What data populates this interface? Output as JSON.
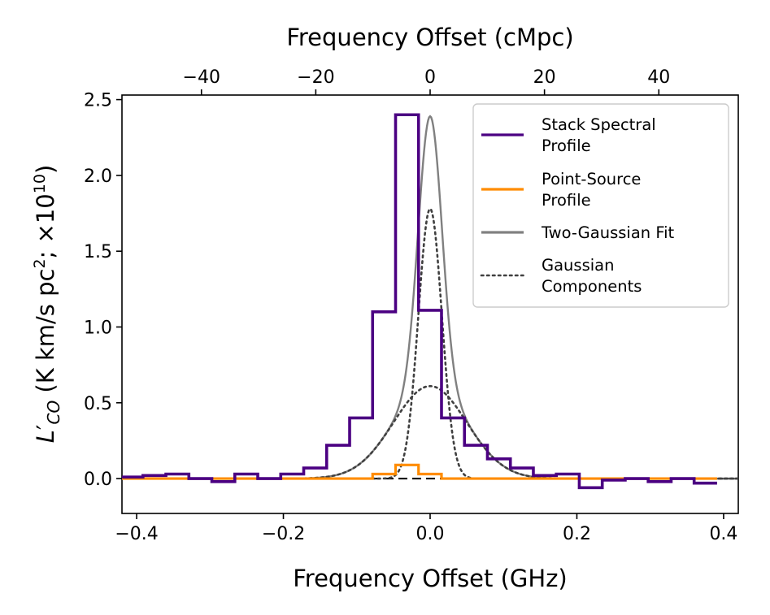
{
  "chart_data": {
    "type": "line",
    "bottom_axis": {
      "label": "Frequency Offset (GHz)",
      "range": [
        -0.42,
        0.42
      ],
      "ticks": [
        -0.4,
        -0.2,
        0.0,
        0.2,
        0.4
      ],
      "tick_labels": [
        "−0.4",
        "−0.2",
        "0.0",
        "0.2",
        "0.4"
      ]
    },
    "top_axis": {
      "label": "Frequency Offset (cMpc)",
      "range": [
        -53.9,
        53.9
      ],
      "ticks": [
        -40,
        -20,
        0,
        20,
        40
      ],
      "tick_labels": [
        "−40",
        "−20",
        "0",
        "20",
        "40"
      ]
    },
    "y_axis": {
      "label": "L′CO (K km/s pc2; ×1010)",
      "label_parts": {
        "symbol": "L",
        "prime": "′",
        "subscript": "CO",
        "open": " (K km/s pc",
        "sq": "2",
        "mid": "; ×10",
        "exp": "10",
        "close": ")"
      },
      "range": [
        -0.23,
        2.53
      ],
      "ticks": [
        0.0,
        0.5,
        1.0,
        1.5,
        2.0,
        2.5
      ],
      "tick_labels": [
        "0.0",
        "0.5",
        "1.0",
        "1.5",
        "2.0",
        "2.5"
      ]
    },
    "legend": {
      "position": "top-right",
      "entries": [
        {
          "lines": [
            "Stack Spectral",
            "Profile"
          ],
          "color": "#4b0082",
          "style": "solid"
        },
        {
          "lines": [
            "Point-Source",
            "Profile"
          ],
          "color": "#ff8c00",
          "style": "solid"
        },
        {
          "lines": [
            "Two-Gaussian Fit"
          ],
          "color": "#808080",
          "style": "solid"
        },
        {
          "lines": [
            "Gaussian",
            "Components"
          ],
          "color": "#404040",
          "style": "dotted"
        }
      ]
    },
    "bin_width": 0.0313,
    "series": [
      {
        "name": "Stack Spectral Profile",
        "kind": "step",
        "color": "#4b0082",
        "x_start": -0.4227,
        "values": [
          0.01,
          0.02,
          0.03,
          0.0,
          -0.02,
          0.03,
          0.0,
          0.03,
          0.07,
          0.22,
          0.4,
          1.1,
          2.4,
          1.11,
          0.4,
          0.22,
          0.13,
          0.07,
          0.02,
          0.03,
          -0.06,
          -0.01,
          0.0,
          -0.02,
          0.0,
          -0.03
        ]
      },
      {
        "name": "Point-Source Profile",
        "kind": "step",
        "color": "#ff8c00",
        "x_start": -0.4227,
        "values": [
          0.0,
          0.0,
          0.0,
          0.0,
          0.0,
          0.0,
          0.0,
          0.0,
          0.0,
          0.0,
          0.0,
          0.03,
          0.09,
          0.03,
          0.0,
          0.0,
          0.0,
          0.0,
          0.0,
          0.0,
          0.0,
          0.0,
          0.0,
          0.0,
          0.0,
          0.0
        ]
      },
      {
        "name": "Two-Gaussian Fit",
        "kind": "model_sum",
        "color": "#808080"
      },
      {
        "name": "Gaussian Components",
        "kind": "gaussian_components",
        "color": "#404040",
        "components": [
          {
            "amplitude": 1.78,
            "center": 0.0,
            "sigma": 0.016
          },
          {
            "amplitude": 0.61,
            "center": 0.0,
            "sigma": 0.05
          }
        ]
      }
    ],
    "reference_line": {
      "y": 0.0,
      "color": "#000000",
      "style": "dashed"
    }
  }
}
